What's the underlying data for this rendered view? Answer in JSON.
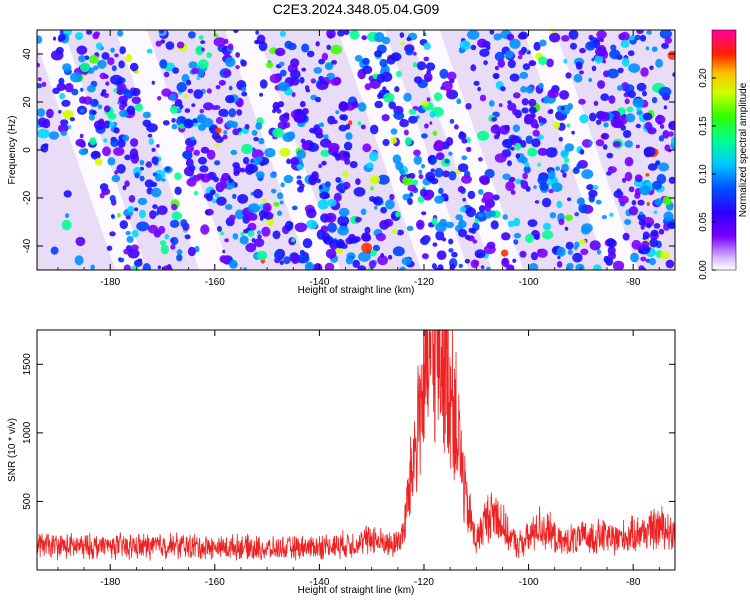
{
  "title": "C2E3.2024.348.05.04.G09",
  "chart_data": [
    {
      "type": "heatmap",
      "xlabel": "Height of straight line (km)",
      "ylabel": "Frequency (Hz)",
      "xlim": [
        -194,
        -72
      ],
      "ylim": [
        -50,
        50
      ],
      "x_ticks": [
        -180,
        -160,
        -140,
        -120,
        -100,
        -80
      ],
      "y_ticks": [
        -40,
        -20,
        0,
        20,
        40
      ],
      "colorbar": {
        "label": "Normalized spectral amplitude",
        "range": [
          0.0,
          0.25
        ],
        "ticks": [
          0.0,
          0.05,
          0.1,
          0.15,
          0.2
        ],
        "tick_labels": [
          "0.00",
          "0.05",
          "0.10",
          "0.15",
          "0.20"
        ],
        "colors": [
          "#ffffff",
          "#7b00ff",
          "#0000ff",
          "#00d0ff",
          "#00ff00",
          "#ffff00",
          "#ff0000",
          "#ff00aa"
        ]
      },
      "features": {
        "diagonal_bands_x_at_0Hz": [
          -178,
          -158,
          -138,
          -118,
          -98,
          -78
        ],
        "diagonal_slope_km_per_hz": -0.16,
        "white_gap_x_at_0Hz": [
          -184,
          -168,
          -147,
          -124,
          -112,
          -90
        ]
      }
    },
    {
      "type": "line",
      "xlabel": "Height of straight line (km)",
      "ylabel": "SNR (10 * v/v)",
      "xlim": [
        -194,
        -72
      ],
      "ylim": [
        0,
        1750
      ],
      "x_ticks": [
        -180,
        -160,
        -140,
        -120,
        -100,
        -80
      ],
      "y_ticks": [
        500,
        1000,
        1500
      ],
      "color": "#ee2222",
      "series": [
        {
          "x": [
            -194,
            -190,
            -185,
            -180,
            -175,
            -170,
            -165,
            -160,
            -155,
            -150,
            -145,
            -140,
            -135,
            -132,
            -130,
            -128,
            -126,
            -124,
            -122,
            -120,
            -118,
            -116,
            -114,
            -112,
            -110,
            -108,
            -106,
            -104,
            -102,
            -100,
            -98,
            -96,
            -94,
            -92,
            -90,
            -88,
            -86,
            -84,
            -82,
            -80,
            -78,
            -76,
            -74,
            -72
          ],
          "y": [
            180,
            175,
            170,
            175,
            170,
            180,
            175,
            160,
            170,
            150,
            160,
            170,
            185,
            200,
            230,
            200,
            180,
            260,
            820,
            1400,
            1620,
            1550,
            1150,
            500,
            210,
            380,
            420,
            250,
            180,
            230,
            320,
            280,
            190,
            220,
            230,
            240,
            250,
            230,
            240,
            260,
            280,
            300,
            320,
            250
          ]
        }
      ]
    }
  ]
}
